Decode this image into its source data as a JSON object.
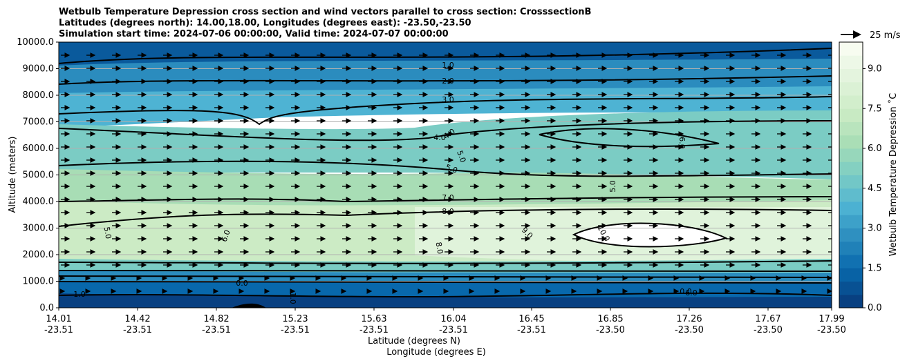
{
  "chart_data": {
    "type": "contour",
    "title": [
      "Wetbulb Temperature Depression cross section and wind vectors parallel to cross section: CrosssectionB",
      "Latitudes (degrees north): 14.00,18.00, Longitudes (degrees east): -23.50,-23.50",
      "Simulation start time: 2024-07-06 00:00:00, Valid time: 2024-07-07 00:00:00"
    ],
    "xlabel_lat": "Latitude (degrees N)",
    "xlabel_lon": "Longitude (degrees E)",
    "ylabel": "Altitude (meters)",
    "colorbar_label": "Wetbulb Temperature Depression ˚C",
    "x_ticks": [
      {
        "lat": "14.01",
        "lon": "-23.51"
      },
      {
        "lat": "14.42",
        "lon": "-23.51"
      },
      {
        "lat": "14.82",
        "lon": "-23.51"
      },
      {
        "lat": "15.23",
        "lon": "-23.51"
      },
      {
        "lat": "15.63",
        "lon": "-23.51"
      },
      {
        "lat": "16.04",
        "lon": "-23.51"
      },
      {
        "lat": "16.45",
        "lon": "-23.51"
      },
      {
        "lat": "16.85",
        "lon": "-23.50"
      },
      {
        "lat": "17.26",
        "lon": "-23.50"
      },
      {
        "lat": "17.67",
        "lon": "-23.50"
      },
      {
        "lat": "17.99",
        "lon": "-23.50"
      }
    ],
    "y_ticks": [
      "0.0",
      "1000.0",
      "2000.0",
      "3000.0",
      "4000.0",
      "5000.0",
      "6000.0",
      "7000.0",
      "8000.0",
      "9000.0",
      "10000.0"
    ],
    "ylim": [
      0,
      10000
    ],
    "colorbar_ticks": [
      "0.0",
      "1.5",
      "3.0",
      "4.5",
      "6.0",
      "7.5",
      "9.0"
    ],
    "colorbar_range": [
      0,
      10
    ],
    "quiver_key": "25 m/s",
    "grid": "horizontal",
    "colormap": [
      "#084081",
      "#0868ac",
      "#2b8cbe",
      "#4eb3d3",
      "#7bccc4",
      "#a8ddb5",
      "#ccebc5",
      "#e0f3db",
      "#f7fcf0"
    ],
    "contour_labels": [
      "1.0",
      "2.0",
      "3.0",
      "4.0",
      "4.0",
      "5.0",
      "5.0",
      "6.0",
      "7.0",
      "8.0",
      "5.0",
      "6.0",
      "8.0",
      "9.0",
      "10.0",
      "6.0",
      "5.0",
      "0.0",
      "0.0",
      "1.0",
      "1.0"
    ]
  }
}
